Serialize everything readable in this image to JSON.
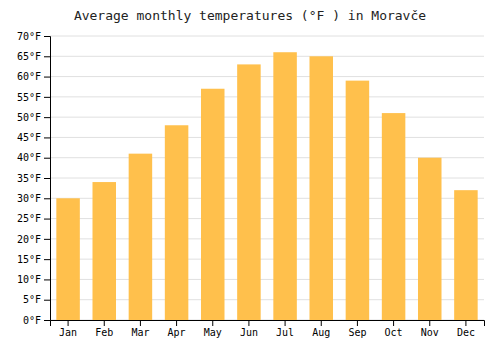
{
  "chart_data": {
    "type": "bar",
    "title": "Average monthly temperatures (°F ) in Moravče",
    "categories": [
      "Jan",
      "Feb",
      "Mar",
      "Apr",
      "May",
      "Jun",
      "Jul",
      "Aug",
      "Sep",
      "Oct",
      "Nov",
      "Dec"
    ],
    "values": [
      30,
      34,
      41,
      48,
      57,
      63,
      66,
      65,
      59,
      51,
      40,
      32
    ],
    "color": "#FFC04C",
    "ylim": [
      0,
      70
    ],
    "yticks": [
      {
        "value": 0,
        "label": "0°F"
      },
      {
        "value": 5,
        "label": "5°F"
      },
      {
        "value": 10,
        "label": "10°F"
      },
      {
        "value": 15,
        "label": "15°F"
      },
      {
        "value": 20,
        "label": "20°F"
      },
      {
        "value": 25,
        "label": "25°F"
      },
      {
        "value": 30,
        "label": "30°F"
      },
      {
        "value": 35,
        "label": "35°F"
      },
      {
        "value": 40,
        "label": "40°F"
      },
      {
        "value": 45,
        "label": "45°F"
      },
      {
        "value": 50,
        "label": "50°F"
      },
      {
        "value": 55,
        "label": "55°F"
      },
      {
        "value": 60,
        "label": "60°F"
      },
      {
        "value": 65,
        "label": "65°F"
      },
      {
        "value": 70,
        "label": "70°F"
      }
    ],
    "grid": true
  }
}
